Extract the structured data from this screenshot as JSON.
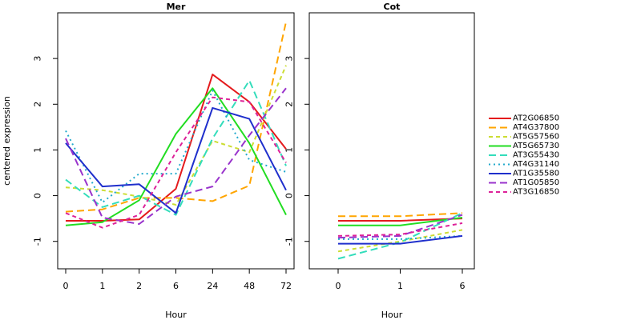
{
  "chart_data": {
    "type": "line",
    "ylabel": "centered expression",
    "ylim": [
      -1.6,
      4.0
    ],
    "yticks": [
      -1,
      0,
      1,
      2,
      3
    ],
    "grid": false,
    "legend_position": "right",
    "series_styles": [
      {
        "name": "AT2G06850",
        "color": "#e41a1c",
        "dash": "solid",
        "width": 2
      },
      {
        "name": "AT4G37800",
        "color": "#ffa500",
        "dash": "long",
        "width": 2
      },
      {
        "name": "AT5G57560",
        "color": "#ccdd33",
        "dash": "short",
        "width": 2
      },
      {
        "name": "AT5G65730",
        "color": "#22dd22",
        "dash": "solid",
        "width": 2
      },
      {
        "name": "AT3G55430",
        "color": "#33ddbb",
        "dash": "long",
        "width": 2
      },
      {
        "name": "AT4G31140",
        "color": "#22aacc",
        "dash": "dot",
        "width": 2
      },
      {
        "name": "AT1G35580",
        "color": "#1f2fcc",
        "dash": "solid",
        "width": 2
      },
      {
        "name": "AT1G05850",
        "color": "#9933cc",
        "dash": "long",
        "width": 2
      },
      {
        "name": "AT3G16850",
        "color": "#dd2299",
        "dash": "short",
        "width": 2
      }
    ],
    "panels": [
      {
        "title": "Mer",
        "xlabel": "Hour",
        "categories": [
          "0",
          "1",
          "2",
          "6",
          "24",
          "48",
          "72"
        ],
        "series": [
          {
            "name": "AT2G06850",
            "values": [
              -0.55,
              -0.55,
              -0.52,
              0.15,
              2.65,
              2.05,
              1.02
            ]
          },
          {
            "name": "AT4G37800",
            "values": [
              -0.35,
              -0.3,
              -0.05,
              -0.05,
              -0.12,
              0.22,
              3.8
            ]
          },
          {
            "name": "AT5G57560",
            "values": [
              0.18,
              0.12,
              -0.02,
              -0.2,
              1.2,
              0.95,
              2.85
            ]
          },
          {
            "name": "AT5G65730",
            "values": [
              -0.65,
              -0.58,
              -0.1,
              1.35,
              2.35,
              1.15,
              -0.42
            ]
          },
          {
            "name": "AT3G55430",
            "values": [
              0.35,
              -0.25,
              0.0,
              -0.42,
              1.25,
              2.52,
              0.65
            ]
          },
          {
            "name": "AT4G31140",
            "values": [
              1.42,
              -0.15,
              0.48,
              0.48,
              2.3,
              0.78,
              0.52
            ]
          },
          {
            "name": "AT1G35580",
            "values": [
              1.15,
              0.2,
              0.25,
              -0.38,
              1.92,
              1.68,
              0.12
            ]
          },
          {
            "name": "AT1G05850",
            "values": [
              1.25,
              -0.48,
              -0.62,
              -0.02,
              0.2,
              1.32,
              2.35
            ]
          },
          {
            "name": "AT3G16850",
            "values": [
              -0.38,
              -0.7,
              -0.42,
              0.95,
              2.15,
              2.05,
              0.72
            ]
          }
        ]
      },
      {
        "title": "Cot",
        "xlabel": "Hour",
        "categories": [
          "0",
          "1",
          "6"
        ],
        "series": [
          {
            "name": "AT2G06850",
            "values": [
              -0.55,
              -0.55,
              -0.5
            ]
          },
          {
            "name": "AT4G37800",
            "values": [
              -0.45,
              -0.45,
              -0.38
            ]
          },
          {
            "name": "AT5G57560",
            "values": [
              -1.22,
              -1.0,
              -0.75
            ]
          },
          {
            "name": "AT5G65730",
            "values": [
              -0.65,
              -0.65,
              -0.48
            ]
          },
          {
            "name": "AT3G55430",
            "values": [
              -1.38,
              -1.02,
              -0.38
            ]
          },
          {
            "name": "AT4G31140",
            "values": [
              -0.95,
              -0.95,
              -0.88
            ]
          },
          {
            "name": "AT1G35580",
            "values": [
              -1.05,
              -1.05,
              -0.88
            ]
          },
          {
            "name": "AT1G05850",
            "values": [
              -0.92,
              -0.88,
              -0.42
            ]
          },
          {
            "name": "AT3G16850",
            "values": [
              -0.88,
              -0.85,
              -0.6
            ]
          }
        ]
      }
    ]
  }
}
